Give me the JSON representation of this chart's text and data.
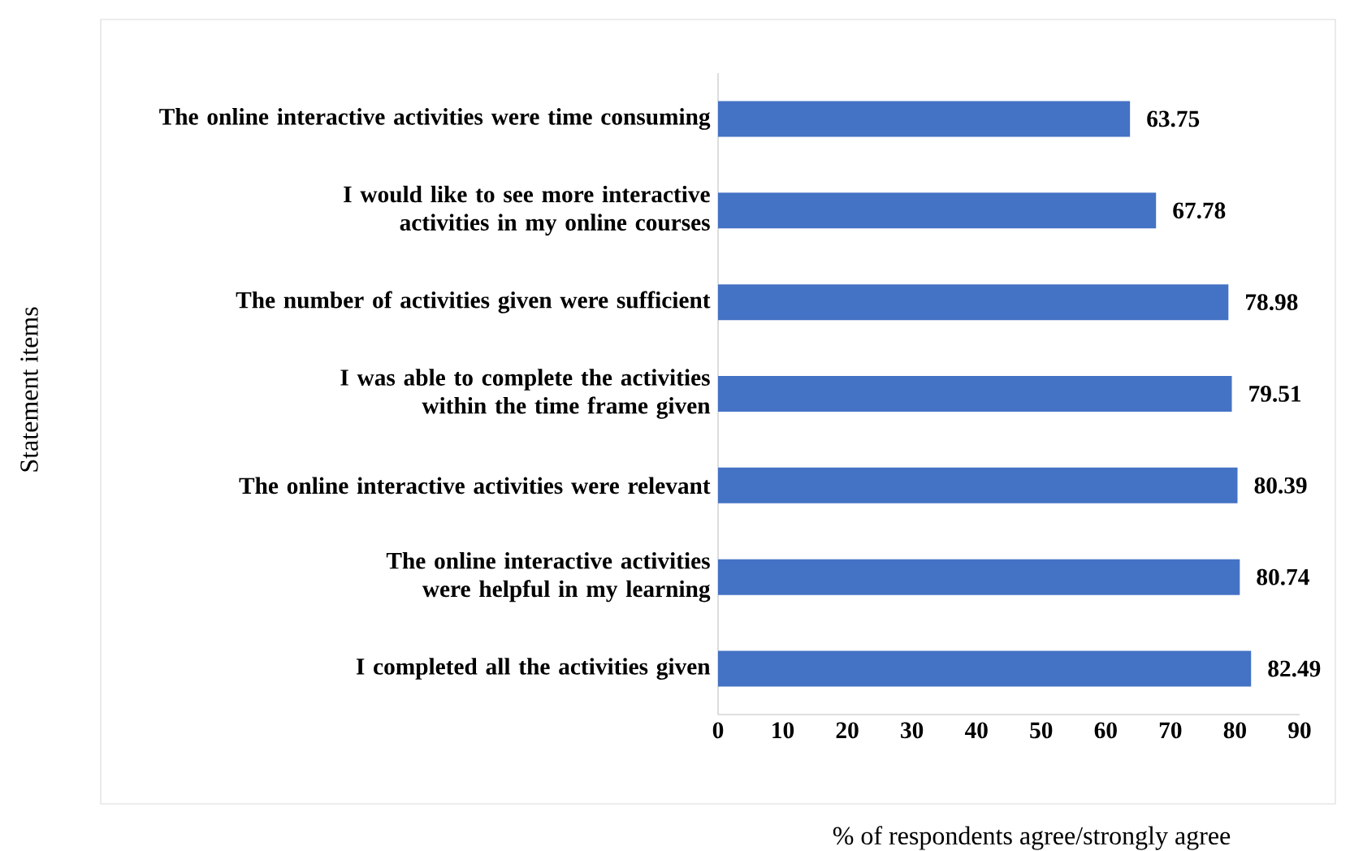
{
  "chart_data": {
    "type": "bar",
    "orientation": "horizontal",
    "categories": [
      "The online interactive activities were time consuming",
      "I would like to see more interactive activities in my online courses",
      "The number of activities given were sufficient",
      "I was able to complete the activities within the time frame given",
      "The online interactive activities were relevant",
      "The online interactive activities were helpful in my learning",
      "I completed all the activities given"
    ],
    "values": [
      63.75,
      67.78,
      78.98,
      79.51,
      80.39,
      80.74,
      82.49
    ],
    "color": "#4472c4",
    "data_labels": true,
    "xlim": [
      0,
      90
    ],
    "xticks": [
      0,
      10,
      20,
      30,
      40,
      50,
      60,
      70,
      80,
      90
    ],
    "xlabel": "% of respondents agree/strongly agree",
    "ylabel": "Statement items"
  }
}
